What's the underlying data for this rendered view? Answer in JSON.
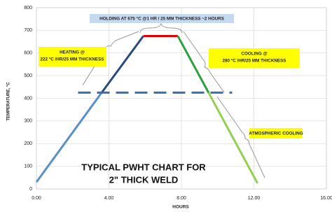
{
  "chart_data": {
    "type": "line",
    "xlabel": "HOURS",
    "ylabel": "TEMPERATURE, °C",
    "xlim": [
      0,
      16
    ],
    "ylim": [
      0,
      800
    ],
    "xticks": [
      {
        "value": 0,
        "label": "0.00"
      },
      {
        "value": 4,
        "label": "4.00"
      },
      {
        "value": 8,
        "label": "8.00"
      },
      {
        "value": 12,
        "label": "12.00"
      },
      {
        "value": 16,
        "label": "16.00"
      }
    ],
    "yticks": [
      0,
      100,
      200,
      300,
      400,
      500,
      600,
      700,
      800
    ],
    "grid": true,
    "series": [
      {
        "color": "#5b8fc7",
        "x": [
          0,
          3.6
        ],
        "values": [
          30,
          425
        ]
      },
      {
        "color": "#2a4a7c",
        "x": [
          3.6,
          5.9
        ],
        "values": [
          425,
          675
        ]
      },
      {
        "color": "#e00000",
        "x": [
          5.9,
          7.8
        ],
        "values": [
          675,
          675
        ]
      },
      {
        "color": "#2e9e3e",
        "x": [
          7.8,
          9.5
        ],
        "values": [
          675,
          425
        ]
      },
      {
        "color": "#92d050",
        "x": [
          9.5,
          12.2
        ],
        "values": [
          425,
          25
        ]
      }
    ],
    "reference_line": {
      "y": 425,
      "x": [
        2.3,
        10.8
      ],
      "color": "#3d6ea8"
    },
    "annotations": [
      {
        "lines": [
          "HOLDING  AT 675 °C @1 HR / 25 MM THICKNESS ~2 HOURS"
        ]
      },
      {
        "lines": [
          "HEATING  @",
          "222 °C /HR/25 MM THICKNESS"
        ]
      },
      {
        "lines": [
          "COOLING  @",
          "280 °C /HR/25 MM THICKNESS"
        ]
      },
      {
        "lines": [
          "ATMOSPHERIC COOLING"
        ]
      }
    ],
    "title_lines": [
      "TYPICAL  PWHT CHART FOR",
      "2\" THICK WELD"
    ]
  }
}
